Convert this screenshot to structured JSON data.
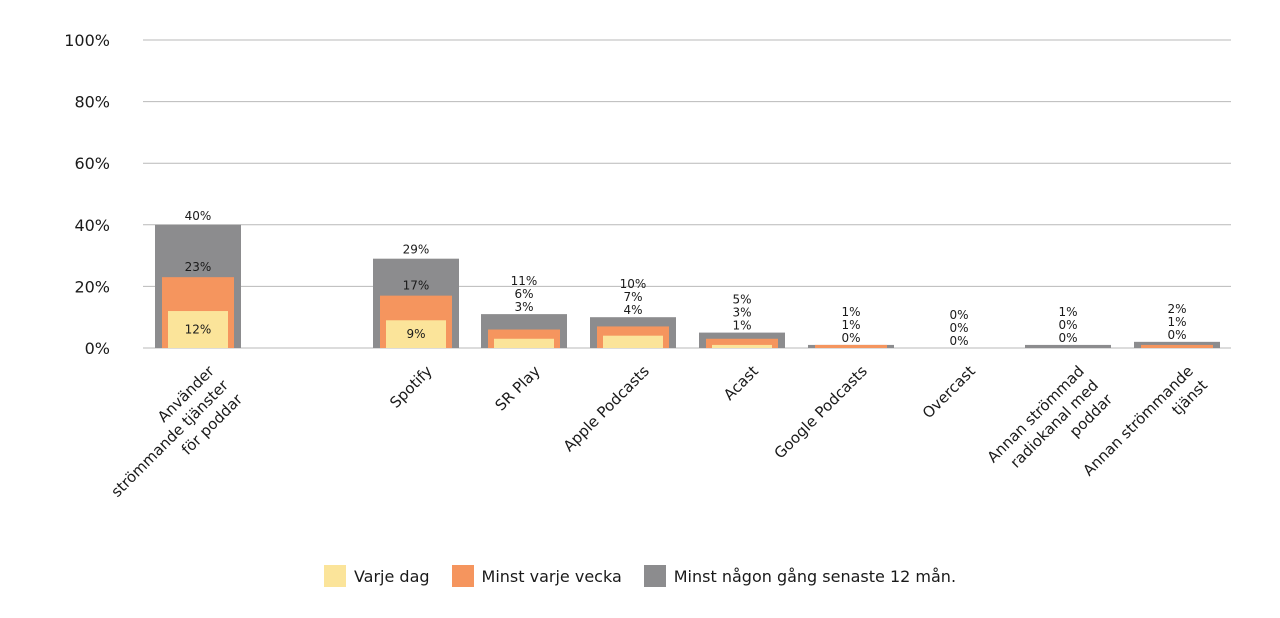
{
  "chart_data": {
    "type": "bar",
    "title": "",
    "xlabel": "",
    "ylabel": "",
    "ylim": [
      0,
      100
    ],
    "y_ticks": [
      "0%",
      "20%",
      "40%",
      "60%",
      "80%",
      "100%"
    ],
    "grid": true,
    "legend_position": "bottom",
    "categories": [
      [
        "Använder",
        "strömmande tjänster",
        "för poddar"
      ],
      [
        "Spotify"
      ],
      [
        "SR Play"
      ],
      [
        "Apple Podcasts"
      ],
      [
        "Acast"
      ],
      [
        "Google Podcasts"
      ],
      [
        "Overcast"
      ],
      [
        "Annan strömmad",
        "radiokanal med",
        "poddar"
      ],
      [
        "Annan strömmande",
        "tjänst"
      ]
    ],
    "series": [
      {
        "name": "Minst någon gång senaste 12 mån.",
        "color": "#8c8c8e",
        "values": [
          40,
          29,
          11,
          10,
          5,
          1,
          0,
          1,
          2
        ],
        "labels": [
          "40%",
          "29%",
          "11%",
          "10%",
          "5%",
          "1%",
          "0%",
          "1%",
          "2%"
        ]
      },
      {
        "name": "Minst varje vecka",
        "color": "#f5955e",
        "values": [
          23,
          17,
          6,
          7,
          3,
          1,
          0,
          0,
          1
        ],
        "labels": [
          "23%",
          "17%",
          "6%",
          "7%",
          "3%",
          "1%",
          "0%",
          "0%",
          "1%"
        ]
      },
      {
        "name": "Varje dag",
        "color": "#fbe49a",
        "values": [
          12,
          9,
          3,
          4,
          1,
          0,
          0,
          0,
          0
        ],
        "labels": [
          "12%",
          "9%",
          "3%",
          "4%",
          "1%",
          "0%",
          "0%",
          "0%",
          "0%"
        ]
      }
    ]
  },
  "legend": [
    {
      "label": "Varje dag",
      "color": "#fbe49a"
    },
    {
      "label": "Minst varje vecka",
      "color": "#f5955e"
    },
    {
      "label": "Minst någon gång senaste 12 mån.",
      "color": "#8c8c8e"
    }
  ]
}
